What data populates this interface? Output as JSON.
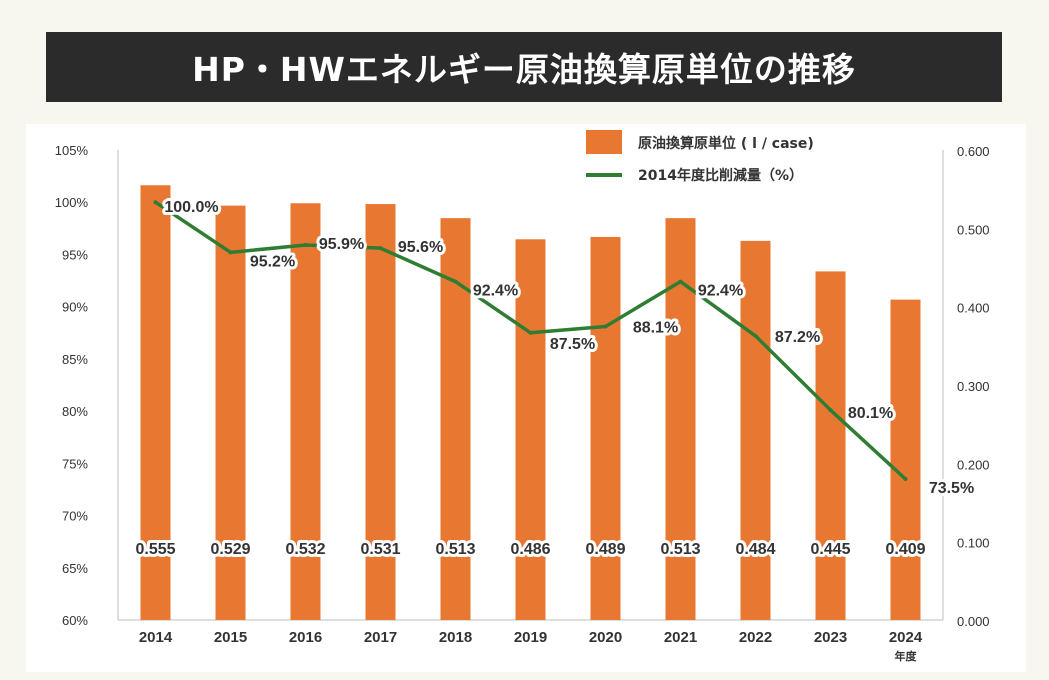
{
  "title": "HP・HWエネルギー原油換算原単位の推移",
  "colors": {
    "bar": "#e87732",
    "line": "#2e7d32",
    "title_bg": "#2b2b2b"
  },
  "chart_data": {
    "type": "bar",
    "categories": [
      "2014",
      "2015",
      "2016",
      "2017",
      "2018",
      "2019",
      "2020",
      "2021",
      "2022",
      "2023",
      "2024"
    ],
    "x_unit_label": "年度",
    "series": [
      {
        "name": "原油換算原単位 ( l / case)",
        "type": "bar",
        "axis": "right",
        "values": [
          0.555,
          0.529,
          0.532,
          0.531,
          0.513,
          0.486,
          0.489,
          0.513,
          0.484,
          0.445,
          0.409
        ],
        "labels": [
          "0.555",
          "0.529",
          "0.532",
          "0.531",
          "0.513",
          "0.486",
          "0.489",
          "0.513",
          "0.484",
          "0.445",
          "0.409"
        ]
      },
      {
        "name": "2014年度比削減量（%）",
        "type": "line",
        "axis": "left",
        "values": [
          100.0,
          95.2,
          95.9,
          95.6,
          92.4,
          87.5,
          88.1,
          92.4,
          87.2,
          80.1,
          73.5
        ],
        "labels": [
          "100.0%",
          "95.2%",
          "95.9%",
          "95.6%",
          "92.4%",
          "87.5%",
          "88.1%",
          "92.4%",
          "87.2%",
          "80.1%",
          "73.5%"
        ]
      }
    ],
    "left_axis": {
      "ylim": [
        60,
        105
      ],
      "ticks": [
        "60%",
        "65%",
        "70%",
        "75%",
        "80%",
        "85%",
        "90%",
        "95%",
        "100%",
        "105%"
      ]
    },
    "right_axis": {
      "ylim": [
        0,
        0.6
      ],
      "ticks": [
        "0.000",
        "0.100",
        "0.200",
        "0.300",
        "0.400",
        "0.500",
        "0.600"
      ]
    },
    "grid": false,
    "legend_position": "top-right"
  }
}
